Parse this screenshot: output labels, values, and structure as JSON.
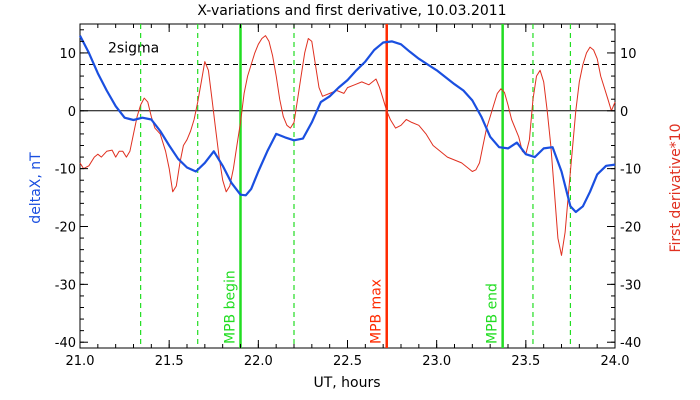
{
  "chart_data": {
    "type": "line",
    "title": "X-variations and first derivative, 10.03.2011",
    "xlabel": "UT, hours",
    "ylabel_left": "deltaX, nT",
    "ylabel_right": "First derivative*10",
    "xlim": [
      21.0,
      24.0
    ],
    "ylim_left": [
      -41,
      15
    ],
    "ylim_right": [
      -41,
      15
    ],
    "x_ticks": [
      "21.0",
      "21.5",
      "22.0",
      "22.5",
      "23.0",
      "23.5",
      "24.0"
    ],
    "y_ticks_left": [
      "10",
      "0",
      "-10",
      "-20",
      "-30",
      "-40"
    ],
    "y_ticks_right": [
      "10",
      "0",
      "-10",
      "-20",
      "-30",
      "-40"
    ],
    "threshold": {
      "label": "2sigma",
      "value": 8
    },
    "zero_line": 0,
    "colors": {
      "deltaX": "#1a4fe0",
      "derivative": "#e03020",
      "green": "#22dd22",
      "red": "#ff2a00",
      "axis": "#000000"
    },
    "vertical_markers": [
      {
        "x": 21.34,
        "style": "dashed",
        "color": "green",
        "label": ""
      },
      {
        "x": 21.66,
        "style": "dashed",
        "color": "green",
        "label": ""
      },
      {
        "x": 21.9,
        "style": "solid",
        "color": "green",
        "label": "MPB begin"
      },
      {
        "x": 22.2,
        "style": "dashed",
        "color": "green",
        "label": ""
      },
      {
        "x": 22.72,
        "style": "solid",
        "color": "red",
        "label": "MPB max"
      },
      {
        "x": 23.37,
        "style": "solid",
        "color": "green",
        "label": "MPB end"
      },
      {
        "x": 23.54,
        "style": "dashed",
        "color": "green",
        "label": ""
      },
      {
        "x": 23.75,
        "style": "dashed",
        "color": "green",
        "label": ""
      }
    ],
    "series": [
      {
        "name": "deltaX, nT",
        "axis": "left",
        "points": [
          [
            21.0,
            13.0
          ],
          [
            21.05,
            10.0
          ],
          [
            21.1,
            6.5
          ],
          [
            21.15,
            3.5
          ],
          [
            21.2,
            0.8
          ],
          [
            21.25,
            -1.2
          ],
          [
            21.3,
            -1.6
          ],
          [
            21.35,
            -1.2
          ],
          [
            21.4,
            -1.5
          ],
          [
            21.45,
            -3.5
          ],
          [
            21.5,
            -6.0
          ],
          [
            21.55,
            -8.3
          ],
          [
            21.6,
            -9.8
          ],
          [
            21.65,
            -10.5
          ],
          [
            21.7,
            -9.0
          ],
          [
            21.75,
            -7.0
          ],
          [
            21.8,
            -9.5
          ],
          [
            21.85,
            -12.5
          ],
          [
            21.9,
            -14.5
          ],
          [
            21.93,
            -14.6
          ],
          [
            21.96,
            -13.5
          ],
          [
            22.0,
            -10.5
          ],
          [
            22.05,
            -7.0
          ],
          [
            22.1,
            -4.0
          ],
          [
            22.15,
            -4.6
          ],
          [
            22.2,
            -5.1
          ],
          [
            22.25,
            -4.8
          ],
          [
            22.3,
            -2.0
          ],
          [
            22.35,
            1.5
          ],
          [
            22.4,
            2.5
          ],
          [
            22.45,
            4.0
          ],
          [
            22.5,
            5.3
          ],
          [
            22.55,
            7.0
          ],
          [
            22.6,
            8.5
          ],
          [
            22.65,
            10.5
          ],
          [
            22.7,
            11.8
          ],
          [
            22.75,
            12.0
          ],
          [
            22.8,
            11.5
          ],
          [
            22.85,
            10.2
          ],
          [
            22.9,
            9.0
          ],
          [
            22.95,
            8.0
          ],
          [
            23.0,
            7.0
          ],
          [
            23.05,
            5.8
          ],
          [
            23.1,
            4.6
          ],
          [
            23.15,
            3.5
          ],
          [
            23.2,
            1.8
          ],
          [
            23.25,
            -1.0
          ],
          [
            23.3,
            -4.5
          ],
          [
            23.35,
            -6.3
          ],
          [
            23.4,
            -6.5
          ],
          [
            23.45,
            -5.5
          ],
          [
            23.5,
            -7.5
          ],
          [
            23.55,
            -8.0
          ],
          [
            23.6,
            -6.5
          ],
          [
            23.65,
            -6.3
          ],
          [
            23.7,
            -10.5
          ],
          [
            23.75,
            -16.5
          ],
          [
            23.78,
            -17.5
          ],
          [
            23.82,
            -16.5
          ],
          [
            23.86,
            -14.0
          ],
          [
            23.9,
            -11.0
          ],
          [
            23.95,
            -9.5
          ],
          [
            24.0,
            -9.3
          ]
        ]
      },
      {
        "name": "First derivative*10",
        "axis": "right",
        "points": [
          [
            21.0,
            -9.0
          ],
          [
            21.02,
            -10.0
          ],
          [
            21.05,
            -9.5
          ],
          [
            21.08,
            -8.0
          ],
          [
            21.1,
            -7.5
          ],
          [
            21.12,
            -8.0
          ],
          [
            21.15,
            -7.0
          ],
          [
            21.18,
            -6.8
          ],
          [
            21.2,
            -8.0
          ],
          [
            21.22,
            -7.0
          ],
          [
            21.24,
            -7.0
          ],
          [
            21.26,
            -8.0
          ],
          [
            21.28,
            -7.0
          ],
          [
            21.3,
            -4.0
          ],
          [
            21.32,
            -1.0
          ],
          [
            21.34,
            1.0
          ],
          [
            21.36,
            2.2
          ],
          [
            21.38,
            1.5
          ],
          [
            21.4,
            -1.0
          ],
          [
            21.42,
            -3.0
          ],
          [
            21.45,
            -4.0
          ],
          [
            21.48,
            -7.0
          ],
          [
            21.5,
            -10.0
          ],
          [
            21.52,
            -14.0
          ],
          [
            21.54,
            -13.0
          ],
          [
            21.56,
            -9.0
          ],
          [
            21.58,
            -6.0
          ],
          [
            21.6,
            -5.0
          ],
          [
            21.62,
            -3.5
          ],
          [
            21.64,
            -1.5
          ],
          [
            21.66,
            1.5
          ],
          [
            21.68,
            5.0
          ],
          [
            21.7,
            8.5
          ],
          [
            21.72,
            7.0
          ],
          [
            21.74,
            2.0
          ],
          [
            21.76,
            -3.0
          ],
          [
            21.78,
            -8.0
          ],
          [
            21.8,
            -12.0
          ],
          [
            21.82,
            -14.0
          ],
          [
            21.84,
            -13.0
          ],
          [
            21.86,
            -10.0
          ],
          [
            21.88,
            -6.0
          ],
          [
            21.9,
            -2.0
          ],
          [
            21.92,
            3.0
          ],
          [
            21.94,
            6.0
          ],
          [
            21.96,
            8.0
          ],
          [
            21.98,
            10.0
          ],
          [
            22.0,
            11.5
          ],
          [
            22.02,
            12.5
          ],
          [
            22.04,
            13.0
          ],
          [
            22.06,
            12.0
          ],
          [
            22.08,
            9.5
          ],
          [
            22.1,
            6.0
          ],
          [
            22.12,
            2.0
          ],
          [
            22.14,
            -1.0
          ],
          [
            22.16,
            -2.5
          ],
          [
            22.18,
            -3.0
          ],
          [
            22.2,
            -2.0
          ],
          [
            22.22,
            2.0
          ],
          [
            22.24,
            6.0
          ],
          [
            22.26,
            10.0
          ],
          [
            22.28,
            12.5
          ],
          [
            22.3,
            12.0
          ],
          [
            22.32,
            8.0
          ],
          [
            22.34,
            4.0
          ],
          [
            22.36,
            2.5
          ],
          [
            22.4,
            3.0
          ],
          [
            22.44,
            3.5
          ],
          [
            22.48,
            3.0
          ],
          [
            22.5,
            4.0
          ],
          [
            22.54,
            4.5
          ],
          [
            22.58,
            5.0
          ],
          [
            22.62,
            4.5
          ],
          [
            22.66,
            5.5
          ],
          [
            22.68,
            4.0
          ],
          [
            22.7,
            2.0
          ],
          [
            22.72,
            0.0
          ],
          [
            22.74,
            -1.5
          ],
          [
            22.77,
            -3.0
          ],
          [
            22.8,
            -2.5
          ],
          [
            22.83,
            -1.5
          ],
          [
            22.86,
            -2.0
          ],
          [
            22.9,
            -2.5
          ],
          [
            22.94,
            -4.0
          ],
          [
            22.98,
            -6.0
          ],
          [
            23.02,
            -7.0
          ],
          [
            23.06,
            -8.0
          ],
          [
            23.1,
            -8.5
          ],
          [
            23.14,
            -9.0
          ],
          [
            23.18,
            -10.0
          ],
          [
            23.2,
            -10.5
          ],
          [
            23.22,
            -10.2
          ],
          [
            23.24,
            -9.0
          ],
          [
            23.26,
            -6.0
          ],
          [
            23.28,
            -3.0
          ],
          [
            23.3,
            -1.0
          ],
          [
            23.32,
            1.0
          ],
          [
            23.34,
            3.0
          ],
          [
            23.36,
            3.8
          ],
          [
            23.38,
            3.2
          ],
          [
            23.4,
            1.0
          ],
          [
            23.42,
            -1.5
          ],
          [
            23.44,
            -3.0
          ],
          [
            23.46,
            -4.5
          ],
          [
            23.48,
            -7.0
          ],
          [
            23.5,
            -7.5
          ],
          [
            23.52,
            -5.0
          ],
          [
            23.54,
            2.0
          ],
          [
            23.56,
            6.0
          ],
          [
            23.58,
            7.0
          ],
          [
            23.6,
            5.0
          ],
          [
            23.62,
            0.0
          ],
          [
            23.64,
            -6.0
          ],
          [
            23.66,
            -14.0
          ],
          [
            23.68,
            -22.0
          ],
          [
            23.7,
            -25.0
          ],
          [
            23.72,
            -21.0
          ],
          [
            23.74,
            -14.0
          ],
          [
            23.76,
            -7.0
          ],
          [
            23.78,
            0.0
          ],
          [
            23.8,
            5.0
          ],
          [
            23.82,
            8.0
          ],
          [
            23.84,
            10.0
          ],
          [
            23.86,
            11.0
          ],
          [
            23.88,
            10.5
          ],
          [
            23.9,
            9.0
          ],
          [
            23.92,
            6.0
          ],
          [
            23.94,
            4.0
          ],
          [
            23.96,
            2.0
          ],
          [
            23.98,
            0.0
          ],
          [
            24.0,
            1.5
          ]
        ]
      }
    ]
  }
}
